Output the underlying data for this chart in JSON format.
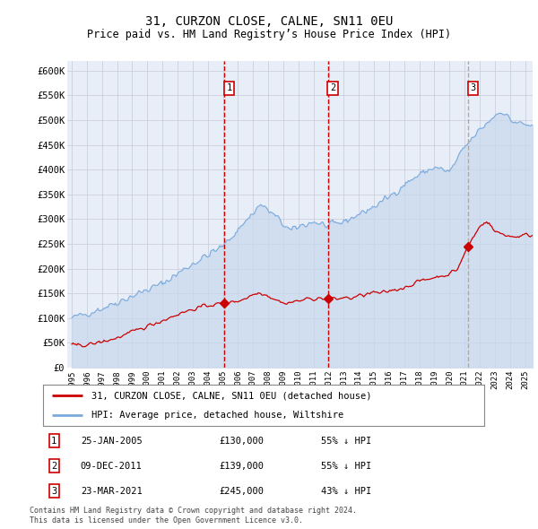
{
  "title": "31, CURZON CLOSE, CALNE, SN11 0EU",
  "subtitle": "Price paid vs. HM Land Registry’s House Price Index (HPI)",
  "ylim": [
    0,
    620000
  ],
  "xlim_start": 1994.7,
  "xlim_end": 2025.5,
  "yticks": [
    0,
    50000,
    100000,
    150000,
    200000,
    250000,
    300000,
    350000,
    400000,
    450000,
    500000,
    550000,
    600000
  ],
  "ytick_labels": [
    "£0",
    "£50K",
    "£100K",
    "£150K",
    "£200K",
    "£250K",
    "£300K",
    "£350K",
    "£400K",
    "£450K",
    "£500K",
    "£550K",
    "£600K"
  ],
  "xticks": [
    1995,
    1996,
    1997,
    1998,
    1999,
    2000,
    2001,
    2002,
    2003,
    2004,
    2005,
    2006,
    2007,
    2008,
    2009,
    2010,
    2011,
    2012,
    2013,
    2014,
    2015,
    2016,
    2017,
    2018,
    2019,
    2020,
    2021,
    2022,
    2023,
    2024,
    2025
  ],
  "sale_dates": [
    2005.07,
    2011.94,
    2021.23
  ],
  "sale_prices": [
    130000,
    139000,
    245000
  ],
  "sale_labels": [
    "1",
    "2",
    "3"
  ],
  "vline_colors": [
    "#cc0000",
    "#cc0000",
    "#aaaaaa"
  ],
  "legend_line1": "31, CURZON CLOSE, CALNE, SN11 0EU (detached house)",
  "legend_line2": "HPI: Average price, detached house, Wiltshire",
  "table_data": [
    [
      "1",
      "25-JAN-2005",
      "£130,000",
      "55% ↓ HPI"
    ],
    [
      "2",
      "09-DEC-2011",
      "£139,000",
      "55% ↓ HPI"
    ],
    [
      "3",
      "23-MAR-2021",
      "£245,000",
      "43% ↓ HPI"
    ]
  ],
  "footnote1": "Contains HM Land Registry data © Crown copyright and database right 2024.",
  "footnote2": "This data is licensed under the Open Government Licence v3.0.",
  "plot_bg_color": "#e8eef8",
  "red_line_color": "#cc0000",
  "blue_line_color": "#7aaadd",
  "grid_color": "#c8c8d8",
  "fill_color": "#c8d8ee"
}
